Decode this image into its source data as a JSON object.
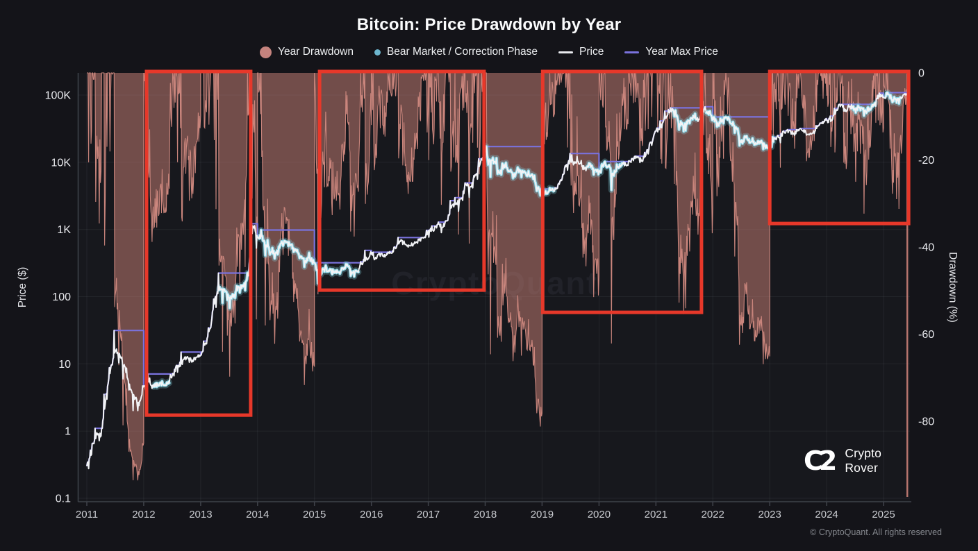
{
  "header": {
    "title": "Bitcoin: Price Drawdown by Year"
  },
  "legend": {
    "items": [
      {
        "label": "Year Drawdown",
        "marker": "circle-large",
        "color": "#c5837e"
      },
      {
        "label": "Bear Market / Correction Phase",
        "marker": "dot",
        "color": "#6db6ce"
      },
      {
        "label": "Price",
        "marker": "line",
        "color": "#e9eaee"
      },
      {
        "label": "Year Max Price",
        "marker": "line",
        "color": "#7a72dd"
      }
    ]
  },
  "watermark": {
    "text": "CryptoQuant"
  },
  "branding": {
    "mark": "C2",
    "name_line1": "Crypto",
    "name_line2": "Rover"
  },
  "footer": {
    "copyright": "© CryptoQuant. All rights reserved"
  },
  "axes": {
    "left": {
      "title": "Price ($)",
      "ticks": [
        "100K",
        "10K",
        "1K",
        "100",
        "10",
        "1",
        "0.1"
      ],
      "tick_values": [
        100000,
        10000,
        1000,
        100,
        10,
        1,
        0.1
      ]
    },
    "right": {
      "title": "Drawdown (%)",
      "ticks": [
        0,
        -20,
        -40,
        -60,
        -80
      ]
    },
    "x": {
      "ticks": [
        2011,
        2012,
        2013,
        2014,
        2015,
        2016,
        2017,
        2018,
        2019,
        2020,
        2021,
        2022,
        2023,
        2024,
        2025
      ]
    }
  },
  "chart_data": {
    "type": "line",
    "title": "Bitcoin: Price Drawdown by Year",
    "xlabel": "Year",
    "ylabel_left": "Price ($)",
    "ylabel_right": "Drawdown (%)",
    "x_range": [
      2011.0,
      2025.42
    ],
    "price_axis_log_ticks": [
      100000,
      10000,
      1000,
      100,
      10,
      1,
      0.1
    ],
    "drawdown_axis_ticks": [
      0,
      -20,
      -40,
      -60,
      -80
    ],
    "start_price": 0.3,
    "months_start": "2011-01",
    "monthly": {
      "close": [
        0.45,
        0.9,
        0.85,
        3.0,
        8.2,
        15.4,
        13.1,
        9.1,
        5.0,
        3.2,
        2.4,
        4.7,
        5.5,
        4.9,
        4.9,
        5.0,
        5.1,
        6.7,
        9.4,
        10.0,
        12.4,
        11.2,
        12.5,
        13.5,
        20.4,
        33.4,
        93,
        139,
        128,
        97,
        106,
        141,
        141,
        204,
        1130,
        757,
        805,
        550,
        458,
        446,
        627,
        640,
        589,
        506,
        388,
        338,
        378,
        320,
        217,
        254,
        244,
        236,
        230,
        263,
        284,
        230,
        236,
        314,
        377,
        430,
        368,
        437,
        416,
        448,
        531,
        670,
        624,
        575,
        609,
        700,
        745,
        963,
        970,
        1190,
        1080,
        1350,
        2290,
        2480,
        2875,
        4700,
        4360,
        6450,
        9900,
        14100,
        10200,
        10300,
        6930,
        9240,
        7490,
        6400,
        7730,
        7030,
        6630,
        6300,
        4020,
        3740,
        3460,
        3850,
        4100,
        5320,
        8560,
        10800,
        10100,
        9600,
        8300,
        9150,
        7550,
        7190,
        9350,
        8600,
        6440,
        8620,
        9450,
        9140,
        11350,
        11650,
        10780,
        13800,
        19700,
        29000,
        33100,
        45200,
        58800,
        57750,
        37300,
        35000,
        41600,
        47100,
        43800,
        61300,
        57000,
        46200,
        38500,
        43200,
        45500,
        37700,
        31800,
        19900,
        23300,
        20050,
        19400,
        20500,
        17100,
        16550,
        23100,
        23500,
        28500,
        29200,
        27200,
        30500,
        29200,
        26000,
        26900,
        34500,
        37700,
        42300,
        42600,
        61200,
        71300,
        60600,
        67500,
        62700,
        64600,
        58900,
        63300,
        70200,
        96400,
        93400,
        102400,
        84400,
        82500,
        94200,
        103000
      ],
      "high": [
        0.53,
        1.1,
        0.95,
        3.6,
        8.9,
        31.9,
        17.0,
        13.0,
        8.9,
        4.2,
        3.2,
        4.8,
        7.2,
        6.2,
        5.3,
        5.6,
        5.3,
        7.0,
        9.6,
        15.4,
        12.9,
        12.8,
        12.8,
        13.9,
        21.8,
        34.5,
        94,
        230,
        130,
        120,
        110,
        146,
        147,
        230,
        1240,
        1156,
        995,
        680,
        700,
        540,
        630,
        680,
        655,
        600,
        510,
        400,
        450,
        384,
        320,
        263,
        300,
        262,
        248,
        268,
        312,
        285,
        246,
        334,
        502,
        466,
        462,
        447,
        440,
        468,
        550,
        780,
        707,
        600,
        629,
        720,
        755,
        980,
        1150,
        1200,
        1290,
        1360,
        2760,
        2980,
        2920,
        4980,
        4950,
        6500,
        11400,
        19500,
        17200,
        11800,
        11650,
        9750,
        9990,
        7750,
        8480,
        7770,
        7410,
        7540,
        6540,
        4300,
        4080,
        4190,
        4190,
        5600,
        9070,
        13800,
        13150,
        12300,
        10900,
        9900,
        9500,
        7750,
        9550,
        10500,
        9180,
        9460,
        10000,
        10380,
        11450,
        12470,
        12050,
        14100,
        19900,
        29300,
        42000,
        58350,
        61800,
        64800,
        59500,
        41300,
        42200,
        50500,
        52900,
        66900,
        69000,
        59000,
        47900,
        45800,
        48200,
        47450,
        40000,
        31950,
        24650,
        25200,
        22800,
        20800,
        21450,
        18350,
        23950,
        25250,
        29180,
        31050,
        29850,
        31400,
        31800,
        30200,
        27480,
        35150,
        38400,
        44700,
        48970,
        63900,
        73800,
        72750,
        71950,
        71990,
        69990,
        65600,
        66500,
        73620,
        99800,
        108300,
        109350,
        102700,
        95000,
        95700,
        105800
      ],
      "low": [
        0.27,
        0.65,
        0.7,
        1.1,
        2.9,
        9.5,
        10.3,
        5.9,
        4.0,
        2.0,
        1.99,
        2.8,
        3.9,
        4.2,
        4.5,
        4.7,
        4.8,
        5.1,
        6.5,
        7.5,
        9.8,
        10.3,
        10.6,
        12.6,
        13.3,
        19.5,
        33.8,
        68,
        79,
        88,
        66,
        93,
        114,
        124,
        200,
        522,
        720,
        400,
        420,
        360,
        425,
        560,
        565,
        455,
        375,
        275,
        320,
        305,
        157,
        210,
        236,
        210,
        226,
        219,
        255,
        198,
        198,
        230,
        295,
        350,
        352,
        365,
        385,
        410,
        442,
        520,
        590,
        540,
        570,
        610,
        670,
        740,
        750,
        920,
        890,
        1080,
        1350,
        2150,
        1830,
        2650,
        2950,
        4150,
        5500,
        10800,
        9000,
        5900,
        6600,
        6430,
        7080,
        5780,
        6070,
        5860,
        6100,
        6200,
        3650,
        3200,
        3350,
        3330,
        3670,
        4050,
        5300,
        7430,
        9080,
        9320,
        7700,
        7300,
        6520,
        6430,
        6850,
        8400,
        3850,
        6150,
        8100,
        8900,
        9000,
        10550,
        9820,
        10200,
        13200,
        17600,
        28130,
        32300,
        45000,
        46930,
        30000,
        28800,
        29300,
        37300,
        39600,
        43300,
        53300,
        42000,
        32950,
        34300,
        37160,
        37580,
        26700,
        17600,
        18800,
        19550,
        18150,
        18650,
        15480,
        16250,
        16500,
        21400,
        19550,
        27050,
        25800,
        24750,
        29500,
        25350,
        24900,
        26550,
        34100,
        37600,
        38500,
        41900,
        59000,
        56500,
        56500,
        58400,
        53500,
        49000,
        52550,
        58900,
        66800,
        90500,
        89200,
        78200,
        76600,
        74440,
        100700
      ]
    },
    "bear_phases": [
      [
        2012.17,
        2012.45
      ],
      [
        2013.32,
        2013.83
      ],
      [
        2014.03,
        2015.77
      ],
      [
        2018.01,
        2019.21
      ],
      [
        2019.79,
        2020.42
      ],
      [
        2021.3,
        2021.72
      ],
      [
        2021.88,
        2023.07
      ],
      [
        2024.44,
        2024.86
      ],
      [
        2025.04,
        2025.3
      ]
    ],
    "highlight_boxes": [
      {
        "x0": 2012.05,
        "x1": 2013.88,
        "dd_bottom": -78.6
      },
      {
        "x0": 2015.09,
        "x1": 2017.98,
        "dd_bottom": -49.9
      },
      {
        "x0": 2019.01,
        "x1": 2021.8,
        "dd_bottom": -55.0
      },
      {
        "x0": 2023.0,
        "x1": 2025.44,
        "dd_bottom": -34.6
      }
    ],
    "colors": {
      "price_line": "#f2f3f6",
      "bear_phase_line": "#8fd7e7",
      "bear_phase_glow": "rgba(134,211,228,0.28)",
      "year_max_line": "#7a72dd",
      "drawdown_fill": "rgba(198,126,117,0.52)",
      "drawdown_edge": "rgba(217,143,133,0.9)",
      "highlight_box": "#e7382a",
      "grid": "rgba(205,210,225,0.07)",
      "axis": "#3f424a",
      "tick_label": "#e9eaee",
      "year_label": "#c9cbd0",
      "plot_background": "#17181d",
      "watermark": "#212229"
    }
  }
}
